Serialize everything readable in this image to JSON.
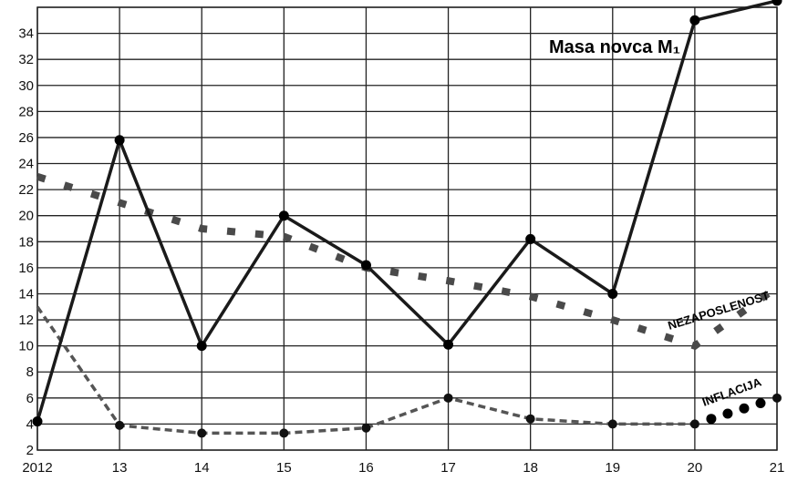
{
  "chart_data": {
    "type": "line",
    "title": "",
    "xlabel": "",
    "ylabel": "",
    "categories": [
      "2012",
      "13",
      "14",
      "15",
      "16",
      "17",
      "18",
      "19",
      "20",
      "21"
    ],
    "ylim": [
      2,
      36
    ],
    "yticks": [
      2,
      4,
      6,
      8,
      10,
      12,
      14,
      16,
      18,
      20,
      22,
      24,
      26,
      28,
      30,
      32,
      34
    ],
    "grid": true,
    "series": [
      {
        "name": "Masa novca M₁",
        "style": "solid",
        "color": "#1a1a1a",
        "markers": true,
        "values": [
          4.2,
          25.8,
          10.0,
          20.0,
          16.2,
          10.1,
          18.2,
          14.0,
          35.0,
          36.5
        ]
      },
      {
        "name": "NEZAPOSLENOST",
        "style": "dotted-thick",
        "color": "#4a4a4a",
        "markers": false,
        "values": [
          23.0,
          21.0,
          19.0,
          18.4,
          16.0,
          15.0,
          13.8,
          12.0,
          10.0,
          14.5
        ]
      },
      {
        "name": "INFLACIJA",
        "style": "dashed",
        "color": "#555555",
        "markers": true,
        "values": [
          13.0,
          3.9,
          3.3,
          3.3,
          3.7,
          6.0,
          4.4,
          4.0,
          4.0,
          6.0
        ]
      }
    ]
  }
}
